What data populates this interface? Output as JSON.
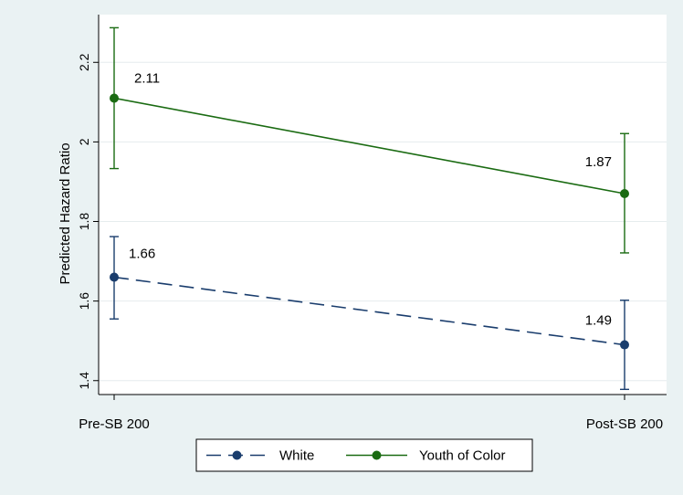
{
  "chart_data": {
    "type": "line",
    "title": "",
    "xlabel": "",
    "ylabel": "Predicted Hazard Ratio",
    "categories": [
      "Pre-SB 200",
      "Post-SB 200"
    ],
    "ylim": [
      1.365,
      2.32
    ],
    "yticks": [
      1.4,
      1.6,
      1.8,
      2,
      2.2
    ],
    "ytick_labels": [
      "1.4",
      "1.6",
      "1.8",
      "2",
      "2.2"
    ],
    "grid": true,
    "legend_position": "bottom",
    "series": [
      {
        "name": "White",
        "color": "#1a3d6d",
        "dash": "dashed",
        "values": [
          1.66,
          1.49
        ],
        "ci_low": [
          1.555,
          1.378
        ],
        "ci_high": [
          1.762,
          1.602
        ],
        "labels": [
          "1.66",
          "1.49"
        ]
      },
      {
        "name": "Youth of Color",
        "color": "#1a6b12",
        "dash": "solid",
        "values": [
          2.11,
          1.87
        ],
        "ci_low": [
          1.933,
          1.721
        ],
        "ci_high": [
          2.287,
          2.021
        ],
        "labels": [
          "2.11",
          "1.87"
        ]
      }
    ]
  }
}
